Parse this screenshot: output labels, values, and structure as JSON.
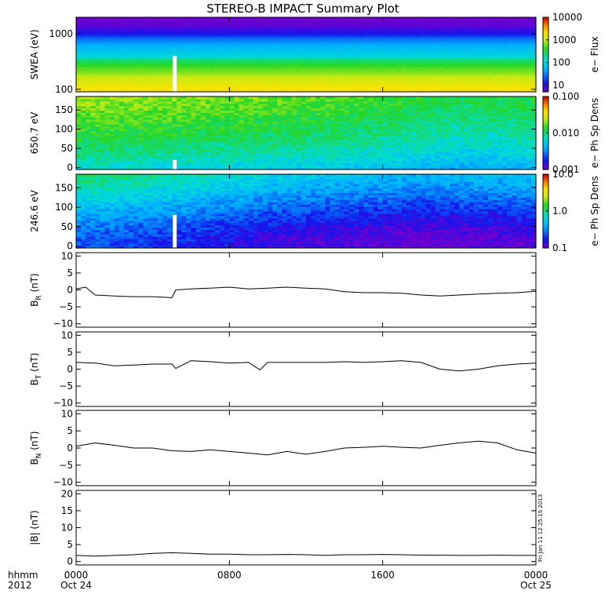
{
  "chart_data": {
    "type": "line",
    "title": "STEREO-B IMPACT Summary Plot",
    "x_axis": {
      "range_hours": [
        0,
        24
      ],
      "ticks": [
        0,
        8,
        16,
        24
      ],
      "tick_labels": [
        [
          "0000",
          "Oct 24"
        ],
        [
          "0800",
          ""
        ],
        [
          "1600",
          ""
        ],
        [
          "0000",
          "Oct 25"
        ]
      ],
      "corner_labels": [
        "hhmm",
        "2012"
      ]
    },
    "annotation": "Fri Jan 11 12:25:15 2013",
    "data_gap_hours": [
      5.05,
      5.25
    ],
    "panels": [
      {
        "id": "swea",
        "type": "heatmap",
        "ylabel": "SWEA (eV)",
        "yscale": "log",
        "ylim": [
          90,
          2000
        ],
        "yticks": [
          100,
          1000
        ],
        "ytick_labels": [
          "100",
          "1000"
        ],
        "colorbar": {
          "label": "e− Flux",
          "scale": "log",
          "range": [
            5,
            10000
          ],
          "tick_values": [
            10,
            100,
            1000,
            10000
          ],
          "tick_labels": [
            "10",
            "100",
            "1000",
            "10000"
          ]
        },
        "color_by_energy_eV": [
          [
            100,
            2000
          ],
          [
            200,
            700
          ],
          [
            400,
            100
          ],
          [
            700,
            40
          ],
          [
            1000,
            12
          ],
          [
            1400,
            6
          ],
          [
            2000,
            5
          ]
        ],
        "gap": {
          "x": [
            5.05,
            5.25
          ],
          "y": [
            90,
            400
          ]
        }
      },
      {
        "id": "pad650",
        "type": "heatmap",
        "ylabel": "650.7 eV",
        "yscale": "linear",
        "ylim": [
          -5,
          185
        ],
        "yticks": [
          0,
          50,
          100,
          150
        ],
        "ytick_labels": [
          "0",
          "50",
          "100",
          "150"
        ],
        "colorbar": {
          "label": "e− Ph Sp Dens",
          "scale": "log",
          "range": [
            0.001,
            0.1
          ],
          "tick_values": [
            0.001,
            0.01,
            0.1
          ],
          "tick_labels": [
            "0.001",
            "0.010",
            "0.100"
          ]
        },
        "color_by_hour": [
          [
            0,
            0.016
          ],
          [
            8,
            0.014
          ],
          [
            14,
            0.012
          ],
          [
            20,
            0.009
          ],
          [
            24,
            0.01
          ]
        ],
        "gap": {
          "x": [
            5.05,
            5.25
          ],
          "y": [
            -5,
            20
          ]
        }
      },
      {
        "id": "pad246",
        "type": "heatmap",
        "ylabel": "246.6 eV",
        "yscale": "linear",
        "ylim": [
          -5,
          185
        ],
        "yticks": [
          0,
          50,
          100,
          150
        ],
        "ytick_labels": [
          "0",
          "50",
          "100",
          "150"
        ],
        "colorbar": {
          "label": "e− Ph Sp Dens",
          "scale": "log",
          "range": [
            0.1,
            10
          ],
          "tick_values": [
            0.1,
            1,
            10
          ],
          "tick_labels": [
            "0.1",
            "1.0",
            "10.0"
          ]
        },
        "color_by_hour": [
          [
            0,
            0.65
          ],
          [
            5,
            0.5
          ],
          [
            10,
            0.35
          ],
          [
            18,
            0.25
          ],
          [
            24,
            0.3
          ]
        ],
        "gap": {
          "x": [
            5.05,
            5.25
          ],
          "y": [
            -5,
            80
          ]
        }
      },
      {
        "id": "br",
        "type": "line",
        "ylabel": "B_R (nT)",
        "ylabel_main": "B",
        "ylabel_sub": "R",
        "ylabel_unit": " (nT)",
        "ylim": [
          -11,
          11
        ],
        "yticks": [
          -10,
          -5,
          0,
          5,
          10
        ],
        "ytick_labels": [
          "−10",
          "−5",
          "0",
          "5",
          "10"
        ],
        "series": [
          {
            "x": [
              0,
              0.5,
              1,
              2,
              3,
              4,
              5.0,
              5.2,
              6,
              7,
              8,
              9,
              10,
              11,
              12,
              13,
              14,
              15,
              16,
              17,
              18,
              19,
              20,
              21,
              22,
              23,
              24
            ],
            "y": [
              0.3,
              0.8,
              -1.5,
              -1.8,
              -2.0,
              -2.0,
              -2.3,
              0.0,
              0.3,
              0.5,
              0.8,
              0.3,
              0.5,
              0.8,
              0.5,
              0.3,
              -0.5,
              -0.8,
              -0.8,
              -1.0,
              -1.5,
              -1.8,
              -1.5,
              -1.2,
              -1.0,
              -0.8,
              -0.4
            ]
          }
        ]
      },
      {
        "id": "bt",
        "type": "line",
        "ylabel": "B_T (nT)",
        "ylabel_main": "B",
        "ylabel_sub": "T",
        "ylabel_unit": " (nT)",
        "ylim": [
          -11,
          11
        ],
        "yticks": [
          -10,
          -5,
          0,
          5,
          10
        ],
        "ytick_labels": [
          "−10",
          "−5",
          "0",
          "5",
          "10"
        ],
        "series": [
          {
            "x": [
              0,
              1,
              2,
              3,
              4,
              5.0,
              5.2,
              6,
              7,
              8,
              9,
              9.6,
              10,
              11,
              12,
              13,
              14,
              15,
              16,
              17,
              18,
              19,
              20,
              21,
              22,
              23,
              24
            ],
            "y": [
              2.0,
              1.8,
              1.0,
              1.2,
              1.5,
              1.5,
              0.2,
              2.5,
              2.2,
              1.8,
              2.0,
              -0.2,
              2.0,
              2.0,
              2.0,
              2.0,
              2.2,
              2.0,
              2.2,
              2.5,
              2.0,
              0.0,
              -0.5,
              0.0,
              1.0,
              1.5,
              1.8
            ]
          }
        ]
      },
      {
        "id": "bn",
        "type": "line",
        "ylabel": "B_N (nT)",
        "ylabel_main": "B",
        "ylabel_sub": "N",
        "ylabel_unit": " (nT)",
        "ylim": [
          -11,
          11
        ],
        "yticks": [
          -10,
          -5,
          0,
          5,
          10
        ],
        "ytick_labels": [
          "−10",
          "−5",
          "0",
          "5",
          "10"
        ],
        "series": [
          {
            "x": [
              0,
              1,
              2,
              3,
              4,
              5,
              6,
              7,
              8,
              9,
              10,
              11,
              12,
              13,
              14,
              15,
              16,
              17,
              18,
              19,
              20,
              21,
              22,
              23,
              24
            ],
            "y": [
              0.5,
              1.5,
              0.8,
              0.0,
              0.0,
              -0.8,
              -1.0,
              -0.5,
              -1.0,
              -1.5,
              -2.0,
              -1.0,
              -1.8,
              -1.0,
              0.0,
              0.2,
              0.5,
              0.2,
              0.0,
              0.8,
              1.5,
              2.0,
              1.5,
              -0.5,
              -1.5
            ]
          }
        ]
      },
      {
        "id": "bmag",
        "type": "line",
        "ylabel": "|B| (nT)",
        "ylim": [
          -1,
          21
        ],
        "yticks": [
          0,
          5,
          10,
          15,
          20
        ],
        "ytick_labels": [
          "0",
          "5",
          "10",
          "15",
          "20"
        ],
        "series": [
          {
            "x": [
              0,
              1,
              2,
              3,
              4,
              5,
              6,
              7,
              8,
              9,
              10,
              11,
              12,
              13,
              14,
              15,
              16,
              17,
              18,
              19,
              20,
              21,
              22,
              23,
              24
            ],
            "y": [
              1.8,
              1.6,
              1.8,
              2.0,
              2.4,
              2.6,
              2.4,
              2.2,
              2.2,
              2.0,
              2.0,
              2.1,
              2.0,
              1.8,
              2.0,
              2.0,
              2.1,
              2.0,
              1.9,
              1.9,
              1.8,
              1.8,
              1.9,
              1.8,
              1.8
            ]
          }
        ]
      }
    ]
  }
}
